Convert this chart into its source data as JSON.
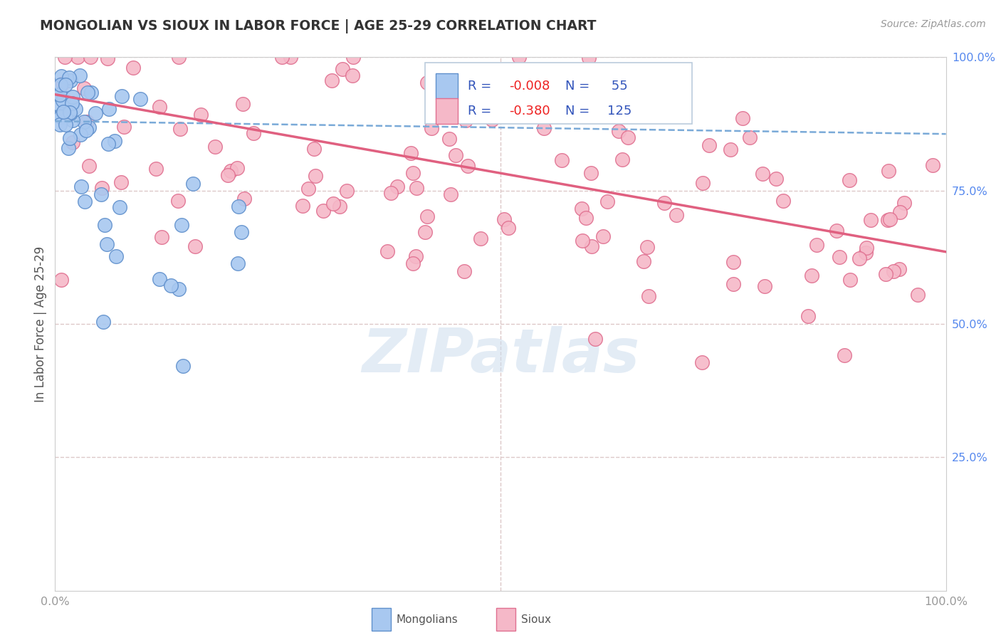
{
  "title": "MONGOLIAN VS SIOUX IN LABOR FORCE | AGE 25-29 CORRELATION CHART",
  "source": "Source: ZipAtlas.com",
  "ylabel": "In Labor Force | Age 25-29",
  "xlim": [
    0.0,
    1.0
  ],
  "ylim": [
    0.0,
    1.0
  ],
  "mongolian_color": "#A8C8F0",
  "sioux_color": "#F5B8C8",
  "mongolian_edge": "#6090CC",
  "sioux_edge": "#E07090",
  "trend_blue": "#7AAAD8",
  "trend_pink": "#E06080",
  "mongolian_R": -0.008,
  "mongolian_N": 55,
  "sioux_R": -0.38,
  "sioux_N": 125,
  "background_color": "#FFFFFF",
  "grid_color": "#DDC8C8",
  "watermark_text": "ZIPatlas",
  "title_color": "#333333",
  "axis_label_color": "#555555",
  "tick_color_x": "#999999",
  "tick_color_y": "#5588EE",
  "legend_text_color": "#3355BB",
  "legend_R_color": "#EE2222"
}
